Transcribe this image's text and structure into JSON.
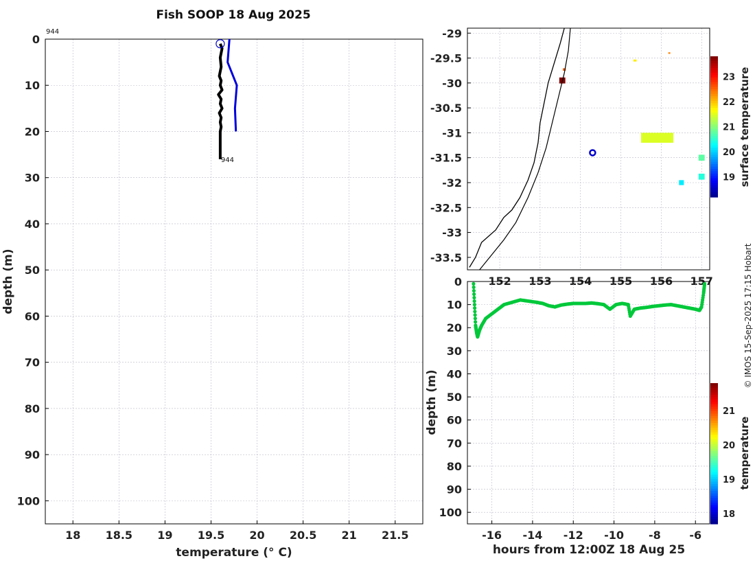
{
  "title": "Fish SOOP 18 Aug 2025",
  "credit": "© IMOS 15-Sep-2025 17:15 Hobart",
  "colors": {
    "profile": "#000000",
    "climatology": "#0000dd",
    "marker": "#0000cc",
    "coastline": "#000000",
    "track": "#00c83a"
  },
  "chart_data": [
    {
      "type": "line",
      "name": "temperature-profile",
      "xlabel": "temperature (° C)",
      "ylabel": "depth (m)",
      "xlim": [
        17.7,
        21.8
      ],
      "ylim": [
        105,
        0
      ],
      "xticks": [
        18,
        18.5,
        19,
        19.5,
        20,
        20.5,
        21,
        21.5
      ],
      "yticks": [
        0,
        10,
        20,
        30,
        40,
        50,
        60,
        70,
        80,
        90,
        100
      ],
      "grid": true,
      "annotations": [
        {
          "text": "944",
          "x": 17.7,
          "y": -1.8
        },
        {
          "text": "944",
          "x": 19.6,
          "y": 26
        }
      ],
      "series": [
        {
          "color": "#000000",
          "x": [
            19.6,
            19.62,
            19.6,
            19.61,
            19.59,
            19.61,
            19.6,
            19.62,
            19.58,
            19.61,
            19.6,
            19.62,
            19.59,
            19.61,
            19.6,
            19.61,
            19.6,
            19.6,
            19.6,
            19.6
          ],
          "y": [
            1,
            2,
            4,
            6,
            8,
            9,
            10,
            11,
            12,
            13,
            14,
            15,
            16,
            17,
            18,
            19,
            20,
            22,
            24,
            26
          ]
        },
        {
          "color": "#0000dd",
          "x": [
            19.7,
            19.68,
            19.78,
            19.76,
            19.77
          ],
          "y": [
            0,
            5,
            10,
            15,
            20
          ]
        }
      ],
      "marker": {
        "x": 19.6,
        "y": 1
      }
    },
    {
      "type": "map",
      "name": "surface-temperature-map",
      "xlim": [
        151.2,
        157.2
      ],
      "ylim": [
        -33.75,
        -28.9
      ],
      "xticks": [
        152,
        153,
        154,
        155,
        156,
        157
      ],
      "yticks": [
        -29,
        -29.5,
        -30,
        -30.5,
        -31,
        -31.5,
        -32,
        -32.5,
        -33,
        -33.5
      ],
      "ytick_labels": [
        "-29",
        "-29.5",
        "-30",
        "-30.5",
        "-31",
        "-31.5",
        "-32",
        "-32.5",
        "-33",
        "-33.5"
      ],
      "grid": true,
      "colorbar": {
        "label": "surface temperature",
        "min": 18.2,
        "max": 23.8,
        "ticks": [
          19,
          20,
          21,
          22,
          23
        ]
      },
      "position_marker": {
        "lon": 154.3,
        "lat": -31.4
      },
      "coastline": [
        [
          151.25,
          -33.7
        ],
        [
          151.4,
          -33.5
        ],
        [
          151.55,
          -33.2
        ],
        [
          151.9,
          -32.95
        ],
        [
          152.1,
          -32.7
        ],
        [
          152.3,
          -32.55
        ],
        [
          152.5,
          -32.3
        ],
        [
          152.7,
          -31.95
        ],
        [
          152.85,
          -31.6
        ],
        [
          152.95,
          -31.2
        ],
        [
          153.0,
          -30.8
        ],
        [
          153.1,
          -30.4
        ],
        [
          153.2,
          -30.0
        ],
        [
          153.35,
          -29.6
        ],
        [
          153.5,
          -29.2
        ],
        [
          153.6,
          -28.9
        ]
      ],
      "shelf_edge": [
        [
          151.5,
          -33.75
        ],
        [
          151.8,
          -33.45
        ],
        [
          152.1,
          -33.15
        ],
        [
          152.4,
          -32.8
        ],
        [
          152.7,
          -32.3
        ],
        [
          152.95,
          -31.8
        ],
        [
          153.15,
          -31.3
        ],
        [
          153.3,
          -30.8
        ],
        [
          153.45,
          -30.3
        ],
        [
          153.6,
          -29.8
        ],
        [
          153.7,
          -29.35
        ],
        [
          153.75,
          -28.9
        ]
      ],
      "sst_patches": [
        {
          "lon": 153.55,
          "lat": -29.95,
          "w": 0.15,
          "h": 0.12,
          "value": 23.8
        },
        {
          "lon": 153.6,
          "lat": -29.73,
          "w": 0.07,
          "h": 0.05,
          "value": 22.6
        },
        {
          "lon": 155.35,
          "lat": -29.55,
          "w": 0.08,
          "h": 0.04,
          "value": 21.8
        },
        {
          "lon": 156.2,
          "lat": -29.4,
          "w": 0.05,
          "h": 0.03,
          "value": 22.4
        },
        {
          "lon": 155.9,
          "lat": -31.1,
          "w": 0.8,
          "h": 0.2,
          "value": 21.5
        },
        {
          "lon": 156.5,
          "lat": -32.0,
          "w": 0.12,
          "h": 0.1,
          "value": 20.2
        },
        {
          "lon": 157.0,
          "lat": -31.5,
          "w": 0.15,
          "h": 0.12,
          "value": 20.8
        },
        {
          "lon": 157.0,
          "lat": -31.88,
          "w": 0.15,
          "h": 0.12,
          "value": 20.5
        }
      ]
    },
    {
      "type": "scatter",
      "name": "depth-time-track",
      "xlabel": "hours from 12:00Z 18 Aug 25",
      "ylabel": "depth (m)",
      "xlim": [
        -17.2,
        -5.3
      ],
      "ylim": [
        105,
        0
      ],
      "xticks": [
        -16,
        -14,
        -12,
        -10,
        -8,
        -6
      ],
      "yticks": [
        0,
        10,
        20,
        30,
        40,
        50,
        60,
        70,
        80,
        90,
        100
      ],
      "grid": true,
      "colorbar": {
        "label": "temperature",
        "min": 17.7,
        "max": 21.8,
        "ticks": [
          18,
          19,
          20,
          21
        ]
      },
      "series": [
        {
          "color_value": 20.0,
          "x": [
            -16.9,
            -16.85,
            -16.8,
            -16.75,
            -16.7,
            -16.6,
            -16.5,
            -16.3,
            -16.0,
            -15.7,
            -15.4,
            -15.0,
            -14.6,
            -14.2,
            -13.8,
            -13.5,
            -13.2,
            -12.9,
            -12.6,
            -12.3,
            -12.0,
            -11.7,
            -11.4,
            -11.1,
            -10.8,
            -10.5,
            -10.2,
            -9.9,
            -9.6,
            -9.3,
            -9.2,
            -9.0,
            -8.7,
            -8.4,
            -8.1,
            -7.8,
            -7.5,
            -7.2,
            -6.9,
            -6.6,
            -6.3,
            -6.0,
            -5.8,
            -5.7,
            -5.6,
            -5.55
          ],
          "y": [
            1,
            10,
            19,
            22,
            24,
            21,
            19,
            16,
            14,
            12,
            10,
            9,
            8,
            8.5,
            9,
            9.5,
            10.5,
            11,
            10.2,
            9.8,
            9.5,
            9.5,
            9.5,
            9.3,
            9.6,
            10,
            12,
            10,
            9.5,
            10,
            15,
            12,
            11.5,
            11.2,
            10.8,
            10.5,
            10.2,
            10,
            10.5,
            11,
            11.5,
            12,
            12.5,
            11,
            5,
            1
          ]
        }
      ]
    }
  ]
}
